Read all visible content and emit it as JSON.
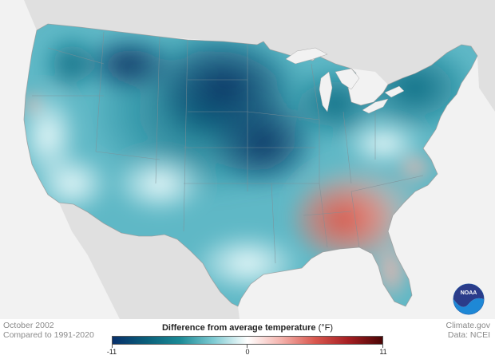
{
  "map": {
    "region": "Contiguous United States",
    "variable": "Difference from average temperature",
    "logo": "noaa-logo"
  },
  "footer": {
    "date_line": "October 2002",
    "compare_line": "Compared to 1991-2020",
    "source_line": "Climate.gov",
    "data_line": "Data: NCEI"
  },
  "legend": {
    "title": "Difference from average temperature",
    "units": "(°F)",
    "min": -11,
    "mid": 0,
    "max": 11,
    "tick_labels": [
      "-11",
      "0",
      "11"
    ],
    "colors": [
      "#08306b",
      "#0a5f7a",
      "#1b8a96",
      "#7fcbd3",
      "#ffffff",
      "#f4b2ac",
      "#d9574e",
      "#a51e22",
      "#4a0505"
    ]
  },
  "colors": {
    "land_outside": "#e0e0e0",
    "ocean": "#f2f2f2",
    "border": "#8a8a8a"
  }
}
